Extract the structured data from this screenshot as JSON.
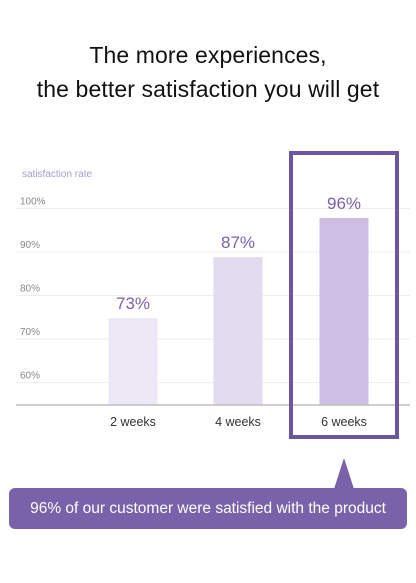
{
  "headline": {
    "line1": "The more experiences,",
    "line2": "the better satisfaction you will get"
  },
  "chart_data": {
    "type": "bar",
    "ylabel": "satisfaction rate",
    "categories": [
      "2 weeks",
      "4 weeks",
      "6 weeks"
    ],
    "values": [
      73,
      87,
      96
    ],
    "value_labels": [
      "73%",
      "87%",
      "96%"
    ],
    "yticks": [
      100,
      90,
      80,
      70,
      60
    ],
    "ytick_labels": [
      "100%",
      "90%",
      "80%",
      "70%",
      "60%"
    ],
    "ylim": [
      53,
      100
    ],
    "grid": true,
    "highlighted_category": "6 weeks",
    "colors": {
      "bar": [
        "#ede8f5",
        "#e3dbf0",
        "#cdbfe4"
      ],
      "value_label": "#7a62aa",
      "highlight_frame": "#6c56a3",
      "grid": "#eeeeee",
      "axis": "#bdbdbd",
      "ylabel": "#a99cce"
    }
  },
  "callout": {
    "text": "96% of our customer were satisfied with the product",
    "color": "#7a62aa"
  }
}
